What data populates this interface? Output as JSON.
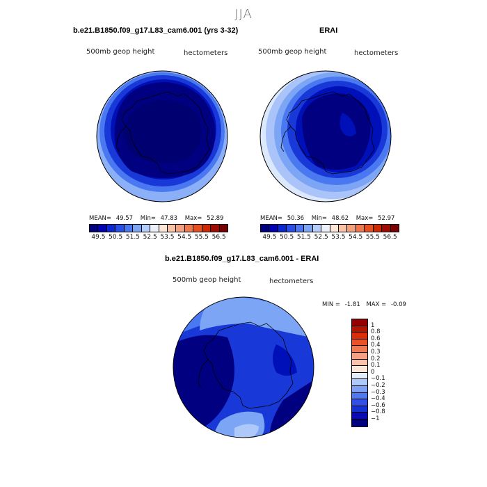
{
  "season": "JJA",
  "panels": [
    {
      "title": "b.e21.B1850.f09_g17.L83_cam6.001 (yrs 3-32)",
      "field": "500mb geop height",
      "units": "hectometers",
      "mean_label": "MEAN=",
      "mean": "49.57",
      "min_label": "Min=",
      "min": "47.83",
      "max_label": "Max=",
      "max": "52.89"
    },
    {
      "title": "ERAI",
      "field": "500mb geop height",
      "units": "hectometers",
      "mean_label": "MEAN=",
      "mean": "50.36",
      "min_label": "Min=",
      "min": "48.62",
      "max_label": "Max=",
      "max": "52.97"
    },
    {
      "title": "b.e21.B1850.f09_g17.L83_cam6.001 - ERAI",
      "field": "500mb geop height",
      "units": "hectometers",
      "min_label": "MIN =",
      "min": "-1.81",
      "max_label": "MAX =",
      "max": "-0.09"
    }
  ],
  "colorbar_top": {
    "colors": [
      "#000080",
      "#0000b4",
      "#0a28d2",
      "#2850e6",
      "#4b78f0",
      "#7da5f5",
      "#b4cdfa",
      "#ebf0fa",
      "#ffe6d7",
      "#fac3a5",
      "#f5a07d",
      "#f0784b",
      "#e6501e",
      "#cd2800",
      "#a00a00",
      "#780000"
    ],
    "tick_labels": [
      "49.5",
      "50.5",
      "51.5",
      "52.5",
      "53.5",
      "54.5",
      "55.5",
      "56.5"
    ]
  },
  "colorbar_diff": {
    "colors": [
      "#000080",
      "#0a0ab4",
      "#1432d2",
      "#3250e6",
      "#5078f0",
      "#7da0f5",
      "#afc8fa",
      "#e6edfa",
      "#fbe6d7",
      "#fac3aa",
      "#f5a082",
      "#f07850",
      "#eb5028",
      "#dc2d0a",
      "#b41400",
      "#960000"
    ],
    "tick_labels": [
      "1",
      "0.8",
      "0.6",
      "0.4",
      "0.3",
      "0.2",
      "0.1",
      "0",
      "-0.1",
      "-0.2",
      "-0.3",
      "-0.4",
      "-0.6",
      "-0.8",
      "-1"
    ]
  },
  "colors": {
    "land_outline": "#000000",
    "model_core": "#000080",
    "model_ring1": "#0010b8",
    "model_ring2": "#1838d8",
    "model_ring3": "#4a78f0",
    "model_ring4": "#8cb0f8",
    "erai_ring5": "#dce8fc"
  }
}
